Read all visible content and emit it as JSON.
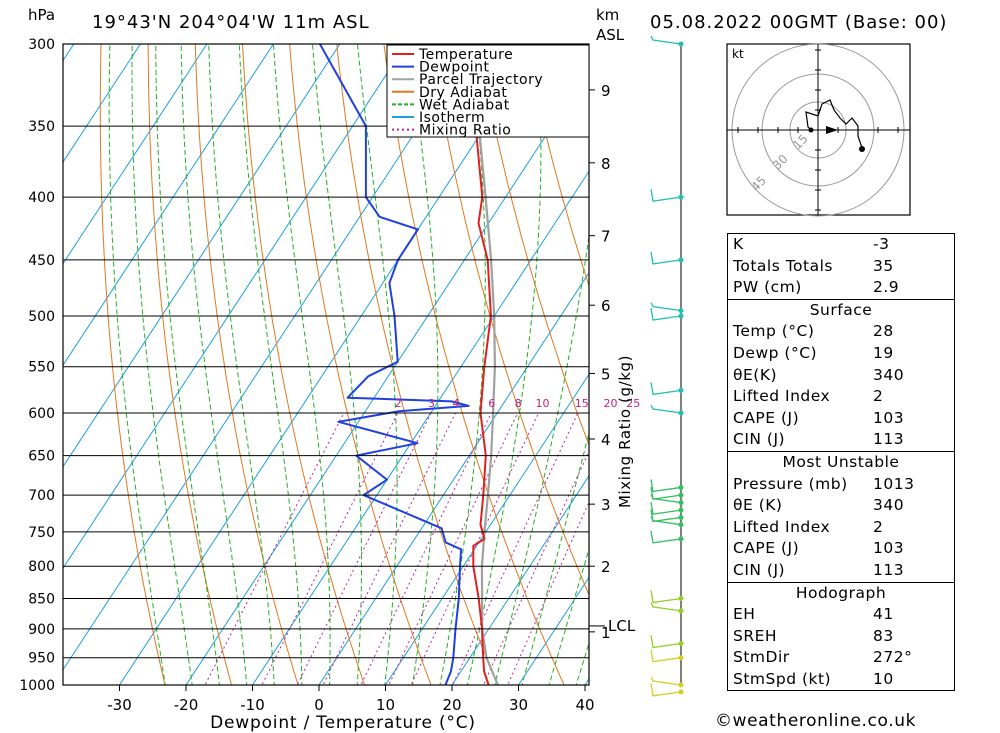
{
  "header": {
    "pressure_unit": "hPa",
    "location": "19°43'N  204°04'W  11m  ASL",
    "km_label": "km",
    "asl_label": "ASL",
    "datetime": "05.08.2022  00GMT  (Base: 00)"
  },
  "chart_data": {
    "type": "skew-t log-p",
    "xlabel": "Dewpoint / Temperature (°C)",
    "ylabel_left": "hPa",
    "ylabel_right": "Mixing Ratio (g/kg)",
    "x_ticks": [
      -30,
      -20,
      -10,
      0,
      10,
      20,
      30,
      40
    ],
    "p_levels": [
      300,
      350,
      400,
      450,
      500,
      550,
      600,
      650,
      700,
      750,
      800,
      850,
      900,
      950,
      1000
    ],
    "km_ticks": [
      {
        "label": "1",
        "p": 905
      },
      {
        "label": "2",
        "p": 800
      },
      {
        "label": "3",
        "p": 712
      },
      {
        "label": "4",
        "p": 630
      },
      {
        "label": "5",
        "p": 557
      },
      {
        "label": "6",
        "p": 490
      },
      {
        "label": "7",
        "p": 430
      },
      {
        "label": "8",
        "p": 375
      },
      {
        "label": "9",
        "p": 327
      }
    ],
    "lcl": {
      "label": "LCL",
      "p": 895
    },
    "mixing_ratio_labels": [
      "2",
      "3",
      "4",
      "6",
      "8",
      "10",
      "15",
      "20",
      "25"
    ],
    "legend": [
      {
        "name": "Temperature",
        "color": "#e02020"
      },
      {
        "name": "Dewpoint",
        "color": "#2040e0"
      },
      {
        "name": "Parcel Trajectory",
        "color": "#a0a0a0"
      },
      {
        "name": "Dry Adiabat",
        "color": "#e07820"
      },
      {
        "name": "Wet Adiabat",
        "color": "#20b020"
      },
      {
        "name": "Isotherm",
        "color": "#1ea0e0"
      },
      {
        "name": "Mixing Ratio",
        "color": "#c020a0"
      }
    ],
    "temperature": [
      [
        1013,
        28
      ],
      [
        1000,
        25.5
      ],
      [
        975,
        23.5
      ],
      [
        950,
        22
      ],
      [
        925,
        20.5
      ],
      [
        900,
        19
      ],
      [
        850,
        15.5
      ],
      [
        800,
        11.5
      ],
      [
        770,
        9.5
      ],
      [
        760,
        10.5
      ],
      [
        740,
        8.5
      ],
      [
        700,
        6
      ],
      [
        650,
        2.5
      ],
      [
        600,
        -2.5
      ],
      [
        550,
        -6.5
      ],
      [
        500,
        -10.5
      ],
      [
        450,
        -16.5
      ],
      [
        420,
        -21.5
      ],
      [
        400,
        -23.5
      ],
      [
        350,
        -31.5
      ],
      [
        300,
        -41
      ]
    ],
    "dewpoint": [
      [
        1013,
        19
      ],
      [
        1000,
        19
      ],
      [
        975,
        18.5
      ],
      [
        950,
        17.5
      ],
      [
        900,
        15
      ],
      [
        850,
        12.5
      ],
      [
        800,
        9.5
      ],
      [
        775,
        8
      ],
      [
        765,
        5
      ],
      [
        745,
        3
      ],
      [
        700,
        -12
      ],
      [
        680,
        -10
      ],
      [
        650,
        -17
      ],
      [
        635,
        -9
      ],
      [
        610,
        -23
      ],
      [
        598,
        -15
      ],
      [
        592,
        -5
      ],
      [
        587,
        -8
      ],
      [
        583,
        -24
      ],
      [
        560,
        -23
      ],
      [
        545,
        -20
      ],
      [
        500,
        -25
      ],
      [
        470,
        -29
      ],
      [
        450,
        -30
      ],
      [
        425,
        -30
      ],
      [
        415,
        -37
      ],
      [
        400,
        -41
      ],
      [
        350,
        -48
      ],
      [
        300,
        -63
      ]
    ],
    "parcel": [
      [
        1013,
        28
      ],
      [
        950,
        22.5
      ],
      [
        900,
        19
      ],
      [
        850,
        16
      ],
      [
        800,
        12.8
      ],
      [
        750,
        9.8
      ],
      [
        700,
        6.7
      ],
      [
        650,
        3.3
      ],
      [
        600,
        -0.6
      ],
      [
        550,
        -4.9
      ],
      [
        500,
        -10
      ],
      [
        450,
        -16
      ],
      [
        400,
        -23
      ],
      [
        350,
        -31
      ],
      [
        300,
        -41
      ]
    ],
    "hodograph": {
      "unit_label": "kt",
      "ring_labels": [
        "15",
        "30",
        "45"
      ]
    },
    "wind_barbs_p": [
      300,
      400,
      450,
      495,
      500,
      575,
      600,
      690,
      700,
      710,
      720,
      730,
      740,
      760,
      850,
      870,
      925,
      950,
      1000,
      1013
    ]
  },
  "indices": [
    {
      "key": "K",
      "value": "-3"
    },
    {
      "key": "Totals Totals",
      "value": "35"
    },
    {
      "key": "PW (cm)",
      "value": "2.9"
    }
  ],
  "surface": {
    "title": "Surface",
    "rows": [
      {
        "key": "Temp (°C)",
        "value": "28"
      },
      {
        "key": "Dewp (°C)",
        "value": "19"
      },
      {
        "key": "θE(K)",
        "value": "340"
      },
      {
        "key": "Lifted Index",
        "value": "2"
      },
      {
        "key": "CAPE (J)",
        "value": "103"
      },
      {
        "key": "CIN (J)",
        "value": "113"
      }
    ]
  },
  "most_unstable": {
    "title": "Most Unstable",
    "rows": [
      {
        "key": "Pressure (mb)",
        "value": "1013"
      },
      {
        "key": "θE (K)",
        "value": "340"
      },
      {
        "key": "Lifted Index",
        "value": "2"
      },
      {
        "key": "CAPE (J)",
        "value": "103"
      },
      {
        "key": "CIN (J)",
        "value": "113"
      }
    ]
  },
  "hodograph_table": {
    "title": "Hodograph",
    "rows": [
      {
        "key": "EH",
        "value": "41"
      },
      {
        "key": "SREH",
        "value": "83"
      },
      {
        "key": "StmDir",
        "value": "272°"
      },
      {
        "key": "StmSpd (kt)",
        "value": "10"
      }
    ]
  },
  "credit": "©weatheronline.co.uk"
}
